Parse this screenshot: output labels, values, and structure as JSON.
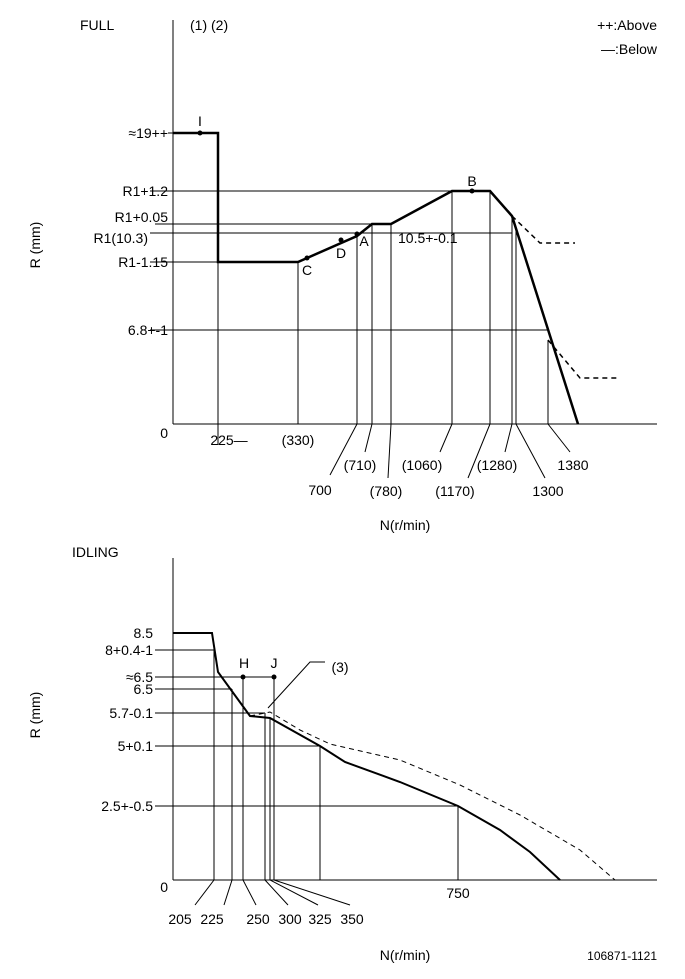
{
  "full": {
    "title": "FULL",
    "notes": "(1) (2)",
    "legend": {
      "above": "++:Above",
      "below": "—:Below"
    },
    "y_axis_title": "R (mm)",
    "y_labels": [
      "≈19++",
      "R1+1.2",
      "R1+0.05",
      "R1(10.3)",
      "R1-1.15",
      "6.8+-1",
      "0"
    ],
    "annotation": "10.5+-0.1",
    "points": [
      "I",
      "B",
      "C",
      "D",
      "A"
    ],
    "x_labels": [
      "225—",
      "(330)",
      "700",
      "(710)",
      "(780)",
      "(1060)",
      "(1170)",
      "(1280)",
      "1300",
      "1380"
    ],
    "x_axis_title": "N(r/min)"
  },
  "idling": {
    "title": "IDLING",
    "y_axis_title": "R (mm)",
    "y_labels": [
      "8.5",
      "8+0.4-1",
      "≈6.5",
      "6.5",
      "5.7-0.1",
      "5+0.1",
      "2.5+-0.5",
      "0"
    ],
    "points": [
      "H",
      "J"
    ],
    "note": "(3)",
    "x_labels": [
      "205",
      "225",
      "250",
      "300",
      "325",
      "350",
      "750"
    ],
    "x_axis_title": "N(r/min)"
  },
  "footer": "106871-1121"
}
